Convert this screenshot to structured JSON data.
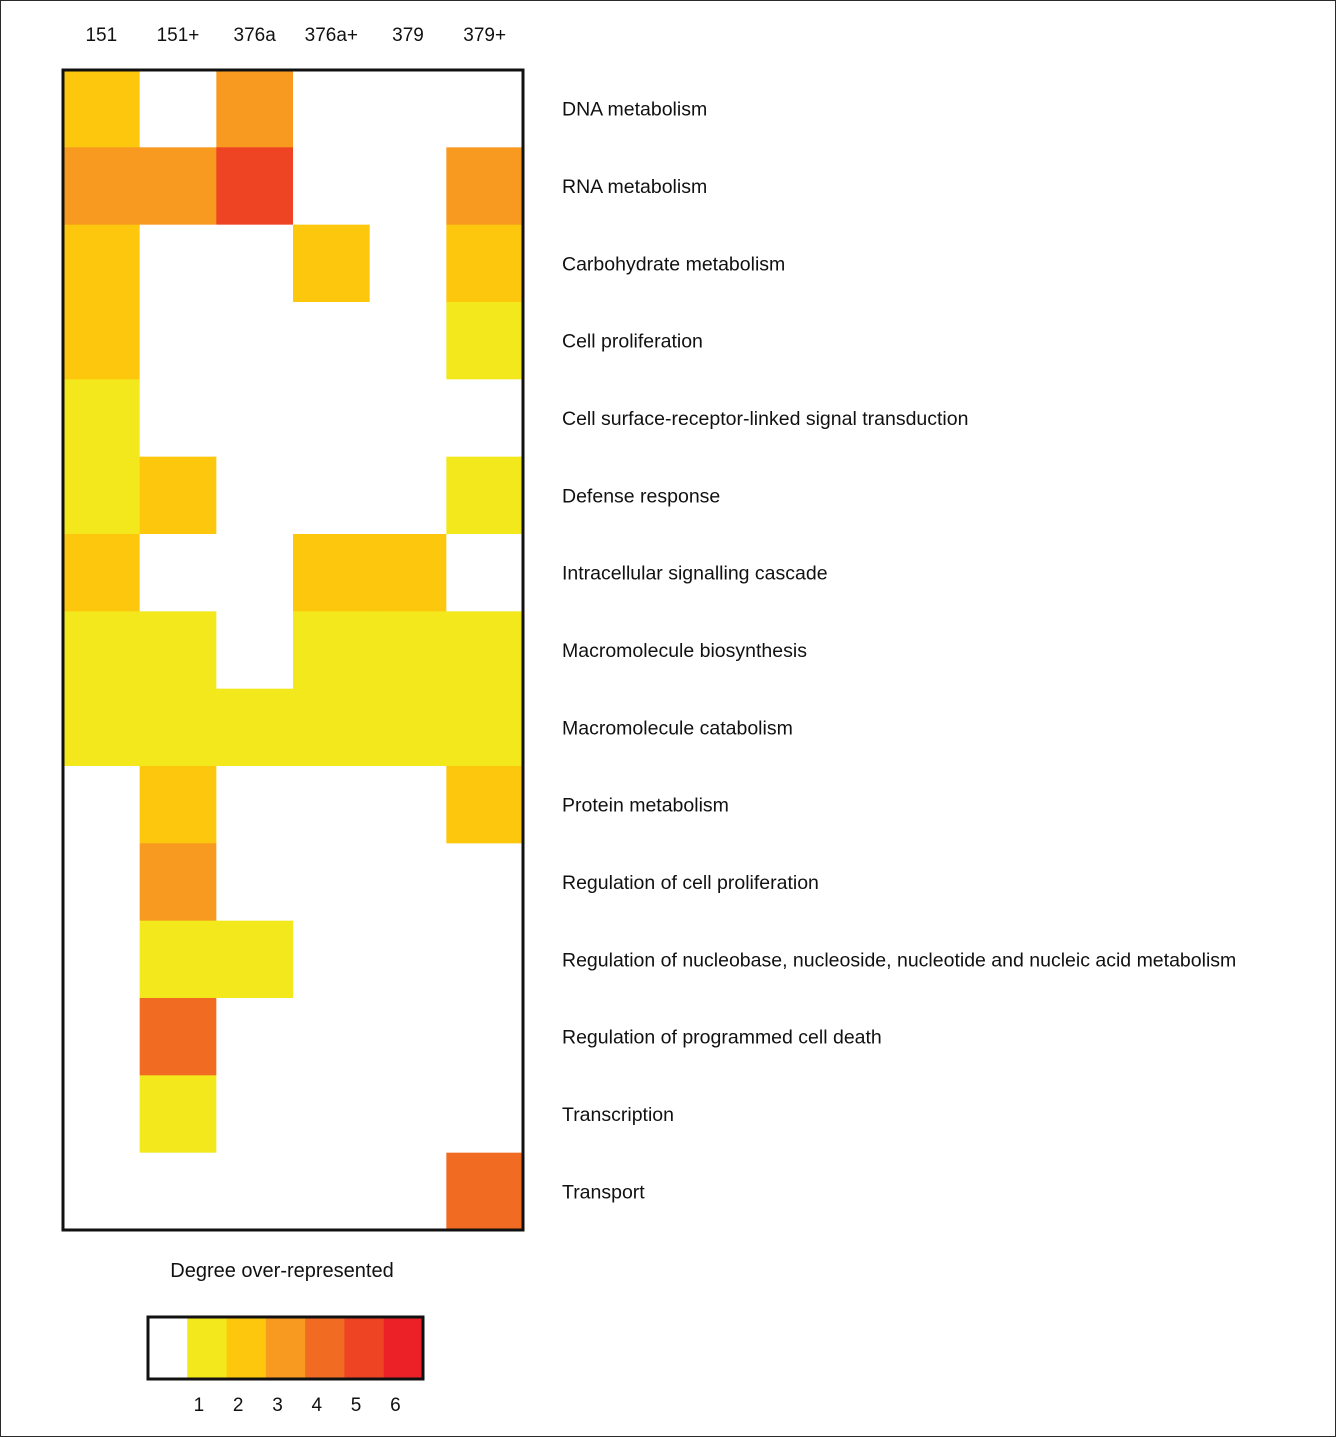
{
  "chart_data": {
    "type": "heatmap",
    "title": "",
    "columns": [
      "151",
      "151+",
      "376a",
      "376a+",
      "379",
      "379+"
    ],
    "rows": [
      "DNA metabolism",
      "RNA metabolism",
      "Carbohydrate metabolism",
      "Cell proliferation",
      "Cell surface-receptor-linked signal transduction",
      "Defense response",
      "Intracellular signalling cascade",
      "Macromolecule biosynthesis",
      "Macromolecule catabolism",
      "Protein metabolism",
      "Regulation of cell proliferation",
      "Regulation of nucleobase, nucleoside, nucleotide and nucleic acid metabolism",
      "Regulation of programmed cell death",
      "Transcription",
      "Transport"
    ],
    "values": [
      [
        2,
        0,
        3,
        0,
        0,
        0
      ],
      [
        3,
        3,
        5,
        0,
        0,
        3
      ],
      [
        2,
        0,
        0,
        2,
        0,
        2
      ],
      [
        2,
        0,
        0,
        0,
        0,
        1
      ],
      [
        1,
        0,
        0,
        0,
        0,
        0
      ],
      [
        1,
        2,
        0,
        0,
        0,
        1
      ],
      [
        2,
        0,
        0,
        2,
        2,
        0
      ],
      [
        1,
        1,
        0,
        1,
        1,
        1
      ],
      [
        1,
        1,
        1,
        1,
        1,
        1
      ],
      [
        0,
        2,
        0,
        0,
        0,
        2
      ],
      [
        0,
        3,
        0,
        0,
        0,
        0
      ],
      [
        0,
        1,
        1,
        0,
        0,
        0
      ],
      [
        0,
        4,
        0,
        0,
        0,
        0
      ],
      [
        0,
        1,
        0,
        0,
        0,
        0
      ],
      [
        0,
        0,
        0,
        0,
        0,
        4
      ]
    ],
    "legend": {
      "title": "Degree over-represented",
      "levels": [
        0,
        1,
        2,
        3,
        4,
        5,
        6
      ],
      "tick_labels": [
        "1",
        "2",
        "3",
        "4",
        "5",
        "6"
      ],
      "colors": [
        "#ffffff",
        "#f2e81c",
        "#fcc70c",
        "#f79a1f",
        "#f26b23",
        "#ee4424",
        "#ec2127"
      ]
    },
    "grid": false,
    "legend_placement": "bottom"
  }
}
